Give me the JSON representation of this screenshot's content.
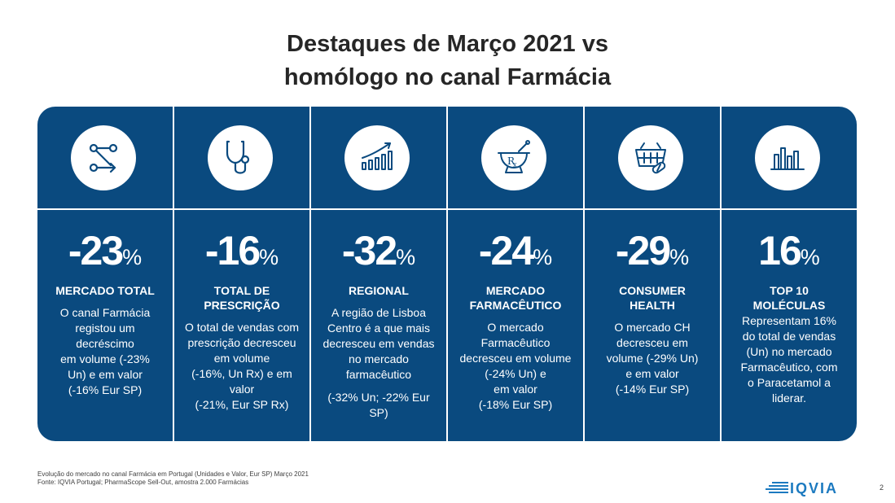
{
  "title": {
    "line1": "Destaques de Março 2021 vs",
    "line2": "homólogo no canal Farmácia"
  },
  "columns": [
    {
      "icon": "flow-arrows-icon",
      "value": "-23",
      "unit": "%",
      "heading": [
        "MERCADO TOTAL"
      ],
      "text": [
        "O canal Farmácia",
        "registou um",
        "decréscimo",
        "em volume (-23%",
        "Un) e em valor",
        "(-16% Eur SP)"
      ]
    },
    {
      "icon": "stethoscope-icon",
      "value": "-16",
      "unit": "%",
      "heading": [
        "TOTAL DE",
        "PRESCRIÇÃO"
      ],
      "text": [
        "O total de vendas com",
        "prescrição decresceu",
        "em volume",
        "(-16%, Un Rx) e em",
        "valor",
        "(-21%, Eur SP Rx)"
      ]
    },
    {
      "icon": "growth-chart-icon",
      "value": "-32",
      "unit": "%",
      "heading": [
        "REGIONAL"
      ],
      "text": [
        "A região de Lisboa",
        "Centro é a que mais",
        "decresceu em vendas",
        "no mercado",
        "farmacêutico"
      ],
      "text2": [
        "(-32% Un; -22% Eur",
        "SP)"
      ]
    },
    {
      "icon": "mortar-rx-icon",
      "value": "-24",
      "unit": "%",
      "heading": [
        "MERCADO",
        "FARMACÊUTICO"
      ],
      "text": [
        "O mercado",
        "Farmacêutico",
        "decresceu em volume",
        "(-24% Un) e",
        "em valor",
        "(-18% Eur SP)"
      ]
    },
    {
      "icon": "shopping-basket-icon",
      "value": "-29",
      "unit": "%",
      "heading": [
        "CONSUMER",
        "HEALTH"
      ],
      "text": [
        "O mercado CH",
        "decresceu em",
        "volume (-29% Un)",
        "e em valor",
        "(-14% Eur SP)"
      ]
    },
    {
      "icon": "bar-chart-icon",
      "value": "16",
      "unit": "%",
      "heading": [
        "TOP 10",
        "MOLÉCULAS"
      ],
      "text": [
        "Representam 16%",
        "do total de vendas",
        "(Un) no mercado",
        "Farmacêutico, com",
        "o Paracetamol a",
        "liderar."
      ]
    }
  ],
  "footnote": [
    "Evolução do mercado no canal Farmácia em Portugal (Unidades e Valor, Eur SP) Março 2021",
    "Fonte: IQVIA Portugal; PharmaScope Sell-Out, amostra 2.000 Farmácias"
  ],
  "logo": "IQVIA",
  "page_number": "2",
  "colors": {
    "panel": "#0a4a7f",
    "logo": "#1c7ac0",
    "icon": "#0a4a7f"
  }
}
